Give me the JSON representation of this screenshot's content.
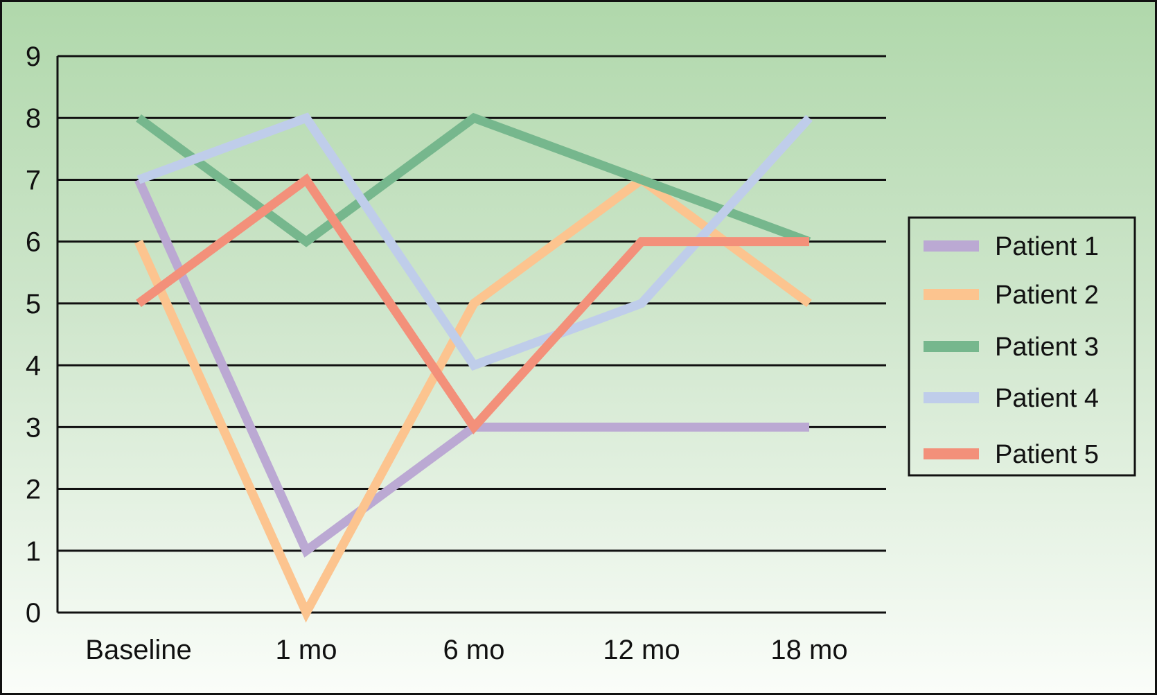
{
  "chart_data": {
    "type": "line",
    "title": "",
    "xlabel": "",
    "ylabel": "",
    "categories": [
      "Baseline",
      "1 mo",
      "6 mo",
      "12 mo",
      "18 mo"
    ],
    "ylim": [
      0,
      9
    ],
    "yticks": [
      "0",
      "1",
      "2",
      "3",
      "4",
      "5",
      "6",
      "7",
      "8",
      "9"
    ],
    "grid": true,
    "legend_position": "right",
    "background": [
      "#b0d8ab",
      "#fafdf9"
    ],
    "series": [
      {
        "name": "Patient 1",
        "color": "#bba9d3",
        "values": [
          7,
          1,
          3,
          3,
          3
        ]
      },
      {
        "name": "Patient 2",
        "color": "#fcc48f",
        "values": [
          6,
          0,
          5,
          7,
          5
        ]
      },
      {
        "name": "Patient 3",
        "color": "#76b78d",
        "values": [
          8,
          6,
          8,
          7,
          6
        ]
      },
      {
        "name": "Patient 4",
        "color": "#bfcdea",
        "values": [
          7,
          8,
          4,
          5,
          8
        ]
      },
      {
        "name": "Patient 5",
        "color": "#f3907a",
        "values": [
          5,
          7,
          3,
          6,
          6
        ]
      }
    ]
  }
}
